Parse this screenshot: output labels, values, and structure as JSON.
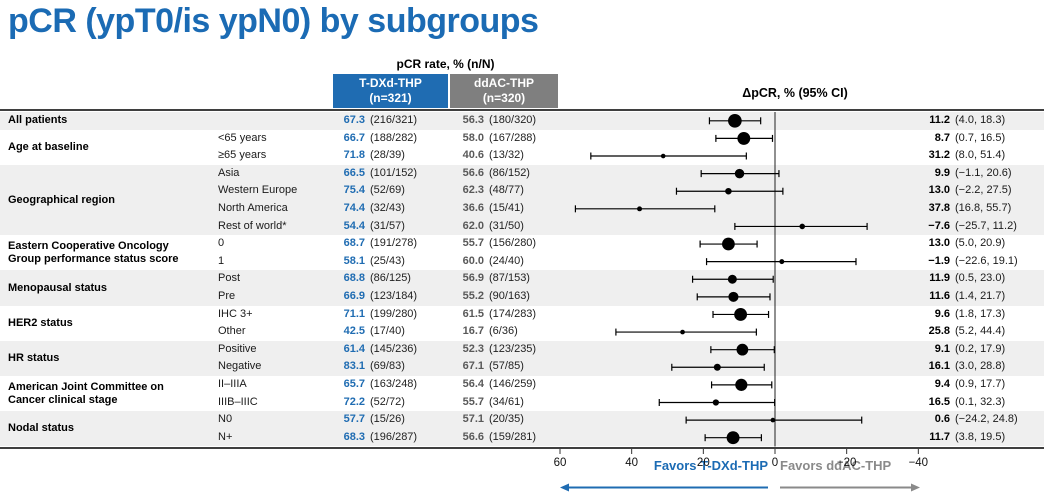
{
  "title": "pCR (ypT0/is ypN0) by subgroups",
  "columns": {
    "pcr_header": "pCR rate, % (n/N)",
    "arm1_name": "T-DXd-THP",
    "arm1_n": "(n=321)",
    "arm2_name": "ddAC-THP",
    "arm2_n": "(n=320)",
    "delta_header": "ΔpCR, % (95% CI)"
  },
  "footer": {
    "favors_left": "Favors T-DXd-THP",
    "favors_right": "Favors ddAC-THP"
  },
  "colors": {
    "accent_blue": "#1f6cb2",
    "header_gray": "#7f7f7f",
    "row_shade": "#efefef",
    "arm2_text": "#595959",
    "favors_gray": "#8a8a8a",
    "marker_black": "#000000"
  },
  "chart_data": {
    "type": "forest",
    "title": "pCR (ypT0/is ypN0) by subgroups",
    "x_axis_ticks": [
      60,
      40,
      20,
      0,
      -20,
      -40
    ],
    "x_axis_reversed": true,
    "xlabel_left": "Favors T-DXd-THP",
    "xlabel_right": "Favors ddAC-THP",
    "groups": [
      {
        "label": "All patients",
        "shaded": true,
        "rows": [
          {
            "subgroup": "",
            "arm1_pct": "67.3",
            "arm1_frac": "(216/321)",
            "arm2_pct": "56.3",
            "arm2_frac": "(180/320)",
            "delta": "11.2",
            "ci": "(4.0, 18.3)",
            "est": 11.2,
            "lo": 4.0,
            "hi": 18.3,
            "n": 641
          }
        ]
      },
      {
        "label": "Age at baseline",
        "shaded": false,
        "rows": [
          {
            "subgroup": "<65 years",
            "arm1_pct": "66.7",
            "arm1_frac": "(188/282)",
            "arm2_pct": "58.0",
            "arm2_frac": "(167/288)",
            "delta": "8.7",
            "ci": "(0.7, 16.5)",
            "est": 8.7,
            "lo": 0.7,
            "hi": 16.5,
            "n": 570
          },
          {
            "subgroup": "≥65 years",
            "arm1_pct": "71.8",
            "arm1_frac": "(28/39)",
            "arm2_pct": "40.6",
            "arm2_frac": "(13/32)",
            "delta": "31.2",
            "ci": "(8.0, 51.4)",
            "est": 31.2,
            "lo": 8.0,
            "hi": 51.4,
            "n": 71
          }
        ]
      },
      {
        "label": "Geographical region",
        "shaded": true,
        "rows": [
          {
            "subgroup": "Asia",
            "arm1_pct": "66.5",
            "arm1_frac": "(101/152)",
            "arm2_pct": "56.6",
            "arm2_frac": "(86/152)",
            "delta": "9.9",
            "ci": "(−1.1, 20.6)",
            "est": 9.9,
            "lo": -1.1,
            "hi": 20.6,
            "n": 304
          },
          {
            "subgroup": "Western Europe",
            "arm1_pct": "75.4",
            "arm1_frac": "(52/69)",
            "arm2_pct": "62.3",
            "arm2_frac": "(48/77)",
            "delta": "13.0",
            "ci": "(−2.2, 27.5)",
            "est": 13.0,
            "lo": -2.2,
            "hi": 27.5,
            "n": 146
          },
          {
            "subgroup": "North America",
            "arm1_pct": "74.4",
            "arm1_frac": "(32/43)",
            "arm2_pct": "36.6",
            "arm2_frac": "(15/41)",
            "delta": "37.8",
            "ci": "(16.8, 55.7)",
            "est": 37.8,
            "lo": 16.8,
            "hi": 55.7,
            "n": 84
          },
          {
            "subgroup": "Rest of world*",
            "arm1_pct": "54.4",
            "arm1_frac": "(31/57)",
            "arm2_pct": "62.0",
            "arm2_frac": "(31/50)",
            "delta": "−7.6",
            "ci": "(−25.7, 11.2)",
            "est": -7.6,
            "lo": -25.7,
            "hi": 11.2,
            "n": 107
          }
        ]
      },
      {
        "label": "Eastern Cooperative Oncology\nGroup performance status score",
        "shaded": false,
        "rows": [
          {
            "subgroup": "0",
            "arm1_pct": "68.7",
            "arm1_frac": "(191/278)",
            "arm2_pct": "55.7",
            "arm2_frac": "(156/280)",
            "delta": "13.0",
            "ci": "(5.0, 20.9)",
            "est": 13.0,
            "lo": 5.0,
            "hi": 20.9,
            "n": 558
          },
          {
            "subgroup": "1",
            "arm1_pct": "58.1",
            "arm1_frac": "(25/43)",
            "arm2_pct": "60.0",
            "arm2_frac": "(24/40)",
            "delta": "−1.9",
            "ci": "(−22.6, 19.1)",
            "est": -1.9,
            "lo": -22.6,
            "hi": 19.1,
            "n": 83
          }
        ]
      },
      {
        "label": "Menopausal status",
        "shaded": true,
        "rows": [
          {
            "subgroup": "Post",
            "arm1_pct": "68.8",
            "arm1_frac": "(86/125)",
            "arm2_pct": "56.9",
            "arm2_frac": "(87/153)",
            "delta": "11.9",
            "ci": "(0.5, 23.0)",
            "est": 11.9,
            "lo": 0.5,
            "hi": 23.0,
            "n": 278
          },
          {
            "subgroup": "Pre",
            "arm1_pct": "66.9",
            "arm1_frac": "(123/184)",
            "arm2_pct": "55.2",
            "arm2_frac": "(90/163)",
            "delta": "11.6",
            "ci": "(1.4, 21.7)",
            "est": 11.6,
            "lo": 1.4,
            "hi": 21.7,
            "n": 347
          }
        ]
      },
      {
        "label": "HER2 status",
        "shaded": false,
        "rows": [
          {
            "subgroup": "IHC 3+",
            "arm1_pct": "71.1",
            "arm1_frac": "(199/280)",
            "arm2_pct": "61.5",
            "arm2_frac": "(174/283)",
            "delta": "9.6",
            "ci": "(1.8, 17.3)",
            "est": 9.6,
            "lo": 1.8,
            "hi": 17.3,
            "n": 563
          },
          {
            "subgroup": "Other",
            "arm1_pct": "42.5",
            "arm1_frac": "(17/40)",
            "arm2_pct": "16.7",
            "arm2_frac": "(6/36)",
            "delta": "25.8",
            "ci": "(5.2, 44.4)",
            "est": 25.8,
            "lo": 5.2,
            "hi": 44.4,
            "n": 76
          }
        ]
      },
      {
        "label": "HR status",
        "shaded": true,
        "rows": [
          {
            "subgroup": "Positive",
            "arm1_pct": "61.4",
            "arm1_frac": "(145/236)",
            "arm2_pct": "52.3",
            "arm2_frac": "(123/235)",
            "delta": "9.1",
            "ci": "(0.2, 17.9)",
            "est": 9.1,
            "lo": 0.2,
            "hi": 17.9,
            "n": 471
          },
          {
            "subgroup": "Negative",
            "arm1_pct": "83.1",
            "arm1_frac": "(69/83)",
            "arm2_pct": "67.1",
            "arm2_frac": "(57/85)",
            "delta": "16.1",
            "ci": "(3.0, 28.8)",
            "est": 16.1,
            "lo": 3.0,
            "hi": 28.8,
            "n": 168
          }
        ]
      },
      {
        "label": "American Joint Committee on\nCancer clinical stage",
        "shaded": false,
        "rows": [
          {
            "subgroup": "II–IIIA",
            "arm1_pct": "65.7",
            "arm1_frac": "(163/248)",
            "arm2_pct": "56.4",
            "arm2_frac": "(146/259)",
            "delta": "9.4",
            "ci": "(0.9, 17.7)",
            "est": 9.4,
            "lo": 0.9,
            "hi": 17.7,
            "n": 507
          },
          {
            "subgroup": "IIIB–IIIC",
            "arm1_pct": "72.2",
            "arm1_frac": "(52/72)",
            "arm2_pct": "55.7",
            "arm2_frac": "(34/61)",
            "delta": "16.5",
            "ci": "(0.1, 32.3)",
            "est": 16.5,
            "lo": 0.1,
            "hi": 32.3,
            "n": 133
          }
        ]
      },
      {
        "label": "Nodal status",
        "shaded": true,
        "rows": [
          {
            "subgroup": "N0",
            "arm1_pct": "57.7",
            "arm1_frac": "(15/26)",
            "arm2_pct": "57.1",
            "arm2_frac": "(20/35)",
            "delta": "0.6",
            "ci": "(−24.2, 24.8)",
            "est": 0.6,
            "lo": -24.2,
            "hi": 24.8,
            "n": 61
          },
          {
            "subgroup": "N+",
            "arm1_pct": "68.3",
            "arm1_frac": "(196/287)",
            "arm2_pct": "56.6",
            "arm2_frac": "(159/281)",
            "delta": "11.7",
            "ci": "(3.8, 19.5)",
            "est": 11.7,
            "lo": 3.8,
            "hi": 19.5,
            "n": 568
          }
        ]
      }
    ]
  }
}
